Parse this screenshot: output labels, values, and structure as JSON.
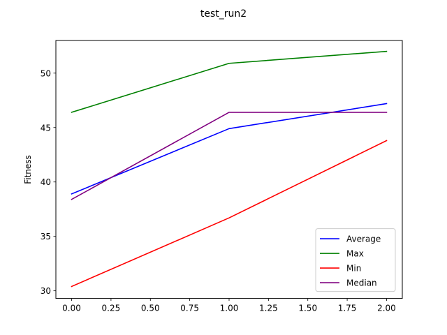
{
  "chart_data": {
    "type": "line",
    "title": "test_run2",
    "xlabel": "",
    "ylabel": "Fitness",
    "x": [
      0,
      1,
      2
    ],
    "xlim": [
      -0.1,
      2.1
    ],
    "ylim": [
      29.3,
      53.0
    ],
    "xticks": [
      0.0,
      0.25,
      0.5,
      0.75,
      1.0,
      1.25,
      1.5,
      1.75,
      2.0
    ],
    "xtick_labels": [
      "0.00",
      "0.25",
      "0.50",
      "0.75",
      "1.00",
      "1.25",
      "1.50",
      "1.75",
      "2.00"
    ],
    "yticks": [
      30,
      35,
      40,
      45,
      50
    ],
    "ytick_labels": [
      "30",
      "35",
      "40",
      "45",
      "50"
    ],
    "grid": false,
    "legend_position": "lower-right",
    "series": [
      {
        "name": "Average",
        "color": "#0000ff",
        "values": [
          38.9,
          44.9,
          47.2
        ]
      },
      {
        "name": "Max",
        "color": "#008000",
        "values": [
          46.4,
          50.9,
          52.0
        ]
      },
      {
        "name": "Min",
        "color": "#ff0000",
        "values": [
          30.4,
          36.7,
          43.8
        ]
      },
      {
        "name": "Median",
        "color": "#800080",
        "values": [
          38.4,
          46.4,
          46.4
        ]
      }
    ]
  }
}
